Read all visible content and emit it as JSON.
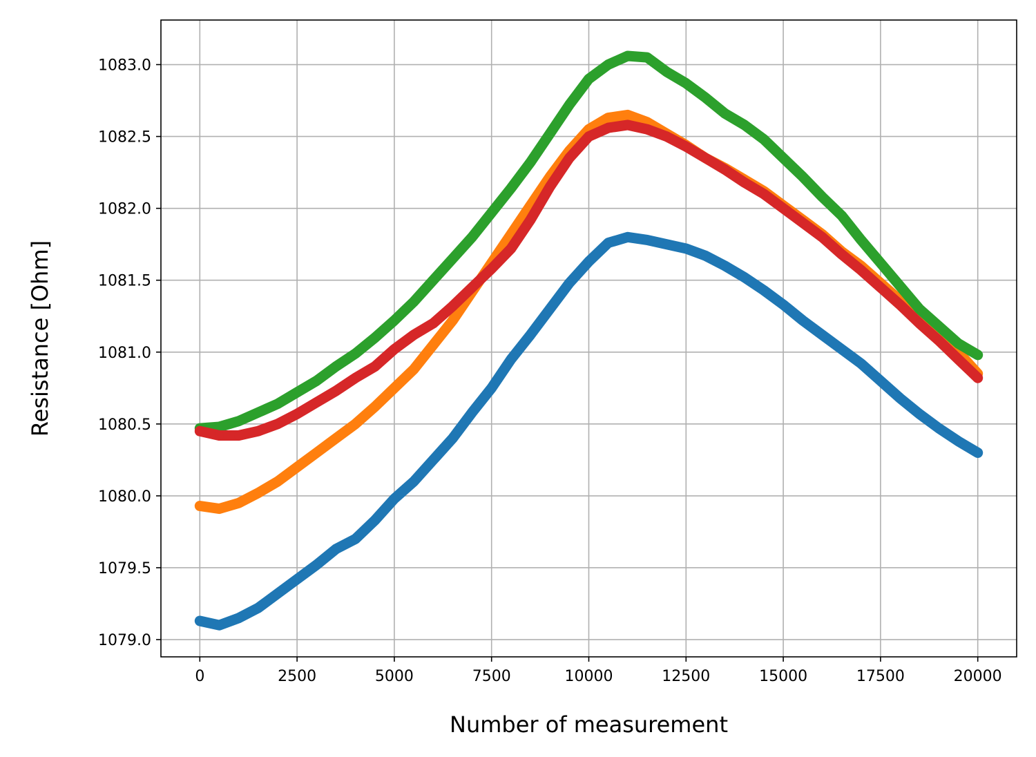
{
  "chart_data": {
    "type": "scatter",
    "title": "",
    "xlabel": "Number of measurement",
    "ylabel": "Resistance [Ohm]",
    "xlim": [
      -1000,
      21000
    ],
    "ylim": [
      1078.88,
      1083.31
    ],
    "xticks": [
      0,
      2500,
      5000,
      7500,
      10000,
      12500,
      15000,
      17500,
      20000
    ],
    "xtick_labels": [
      "0",
      "2500",
      "5000",
      "7500",
      "10000",
      "12500",
      "15000",
      "17500",
      "20000"
    ],
    "yticks": [
      1079.0,
      1079.5,
      1080.0,
      1080.5,
      1081.0,
      1081.5,
      1082.0,
      1082.5,
      1083.0
    ],
    "ytick_labels": [
      "1079.0",
      "1079.5",
      "1080.0",
      "1080.5",
      "1081.0",
      "1081.5",
      "1082.0",
      "1082.5",
      "1083.0"
    ],
    "grid": true,
    "series": [
      {
        "color": "#1f77b4",
        "x": [
          0,
          500,
          1000,
          1500,
          2000,
          2500,
          3000,
          3500,
          4000,
          4500,
          5000,
          5500,
          6000,
          6500,
          7000,
          7500,
          8000,
          8500,
          9000,
          9500,
          10000,
          10500,
          11000,
          11500,
          12000,
          12500,
          13000,
          13500,
          14000,
          14500,
          15000,
          15500,
          16000,
          16500,
          17000,
          17500,
          18000,
          18500,
          19000,
          19500,
          20000
        ],
        "y": [
          1079.13,
          1079.1,
          1079.15,
          1079.22,
          1079.32,
          1079.42,
          1079.52,
          1079.63,
          1079.7,
          1079.83,
          1079.98,
          1080.1,
          1080.25,
          1080.4,
          1080.58,
          1080.75,
          1080.95,
          1081.12,
          1081.3,
          1081.48,
          1081.63,
          1081.76,
          1081.8,
          1081.78,
          1081.75,
          1081.72,
          1081.67,
          1081.6,
          1081.52,
          1081.43,
          1081.33,
          1081.22,
          1081.12,
          1081.02,
          1080.92,
          1080.8,
          1080.68,
          1080.57,
          1080.47,
          1080.38,
          1080.3
        ]
      },
      {
        "color": "#ff7f0e",
        "x": [
          0,
          500,
          1000,
          1500,
          2000,
          2500,
          3000,
          3500,
          4000,
          4500,
          5000,
          5500,
          6000,
          6500,
          7000,
          7500,
          8000,
          8500,
          9000,
          9500,
          10000,
          10500,
          11000,
          11500,
          12000,
          12500,
          13000,
          13500,
          14000,
          14500,
          15000,
          15500,
          16000,
          16500,
          17000,
          17500,
          18000,
          18500,
          19000,
          19500,
          20000
        ],
        "y": [
          1079.93,
          1079.91,
          1079.95,
          1080.02,
          1080.1,
          1080.2,
          1080.3,
          1080.4,
          1080.5,
          1080.62,
          1080.75,
          1080.88,
          1081.05,
          1081.22,
          1081.42,
          1081.62,
          1081.82,
          1082.02,
          1082.22,
          1082.4,
          1082.55,
          1082.63,
          1082.65,
          1082.6,
          1082.52,
          1082.44,
          1082.35,
          1082.28,
          1082.2,
          1082.12,
          1082.02,
          1081.92,
          1081.82,
          1081.7,
          1081.6,
          1081.48,
          1081.36,
          1081.24,
          1081.12,
          1081.0,
          1080.85
        ]
      },
      {
        "color": "#2ca02c",
        "x": [
          0,
          500,
          1000,
          1500,
          2000,
          2500,
          3000,
          3500,
          4000,
          4500,
          5000,
          5500,
          6000,
          6500,
          7000,
          7500,
          8000,
          8500,
          9000,
          9500,
          10000,
          10500,
          11000,
          11500,
          12000,
          12500,
          13000,
          13500,
          14000,
          14500,
          15000,
          15500,
          16000,
          16500,
          17000,
          17500,
          18000,
          18500,
          19000,
          19500,
          20000
        ],
        "y": [
          1080.47,
          1080.48,
          1080.52,
          1080.58,
          1080.64,
          1080.72,
          1080.8,
          1080.9,
          1080.99,
          1081.1,
          1081.22,
          1081.35,
          1081.5,
          1081.65,
          1081.8,
          1081.97,
          1082.14,
          1082.32,
          1082.52,
          1082.72,
          1082.9,
          1083.0,
          1083.06,
          1083.05,
          1082.95,
          1082.87,
          1082.77,
          1082.66,
          1082.58,
          1082.48,
          1082.35,
          1082.22,
          1082.08,
          1081.95,
          1081.78,
          1081.62,
          1081.46,
          1081.3,
          1081.18,
          1081.06,
          1080.98
        ]
      },
      {
        "color": "#d62728",
        "x": [
          0,
          500,
          1000,
          1500,
          2000,
          2500,
          3000,
          3500,
          4000,
          4500,
          5000,
          5500,
          6000,
          6500,
          7000,
          7500,
          8000,
          8500,
          9000,
          9500,
          10000,
          10500,
          11000,
          11500,
          12000,
          12500,
          13000,
          13500,
          14000,
          14500,
          15000,
          15500,
          16000,
          16500,
          17000,
          17500,
          18000,
          18500,
          19000,
          19500,
          20000
        ],
        "y": [
          1080.45,
          1080.42,
          1080.42,
          1080.45,
          1080.5,
          1080.57,
          1080.65,
          1080.73,
          1080.82,
          1080.9,
          1081.02,
          1081.12,
          1081.2,
          1081.32,
          1081.45,
          1081.58,
          1081.72,
          1081.92,
          1082.15,
          1082.35,
          1082.5,
          1082.56,
          1082.58,
          1082.55,
          1082.5,
          1082.43,
          1082.35,
          1082.27,
          1082.18,
          1082.1,
          1082.0,
          1081.9,
          1081.8,
          1081.68,
          1081.57,
          1081.45,
          1081.33,
          1081.2,
          1081.08,
          1080.95,
          1080.82
        ]
      }
    ]
  }
}
